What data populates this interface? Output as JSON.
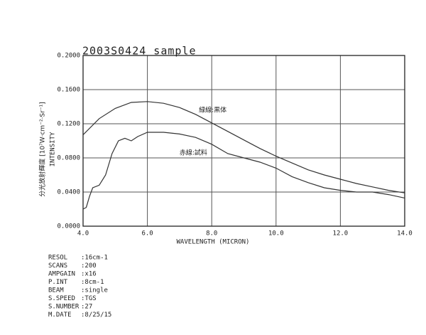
{
  "chart_data": {
    "type": "line",
    "title": "2003S0424 sample",
    "x_label": "WAVELENGTH (MICRON)",
    "y_label": "INTENSITY",
    "y_label_jp": "分光放射輝度 [10⁷W·cm⁻²·Sr⁻¹]",
    "xlim": [
      4,
      14
    ],
    "ylim": [
      0,
      0.2
    ],
    "xticks": [
      {
        "value": 4,
        "label": "4.0"
      },
      {
        "value": 6,
        "label": "6.0"
      },
      {
        "value": 8,
        "label": "8.0"
      },
      {
        "value": 10,
        "label": "10.0"
      },
      {
        "value": 12,
        "label": "12.0"
      },
      {
        "value": 14,
        "label": "14.0"
      }
    ],
    "yticks": [
      {
        "value": 0,
        "label": "0.0000"
      },
      {
        "value": 0.04,
        "label": "0.0400"
      },
      {
        "value": 0.08,
        "label": "0.0800"
      },
      {
        "value": 0.12,
        "label": "0.1200"
      },
      {
        "value": 0.16,
        "label": "0.1600"
      },
      {
        "value": 0.2,
        "label": "0.2000"
      }
    ],
    "grid": true,
    "series": [
      {
        "color": "#333333",
        "x": [
          4.0,
          4.5,
          5.0,
          5.5,
          6.0,
          6.5,
          7.0,
          7.5,
          8.0,
          8.5,
          9.0,
          9.5,
          10.0,
          10.5,
          11.0,
          11.5,
          12.0,
          12.5,
          13.0,
          13.5,
          14.0
        ],
        "values": [
          0.107,
          0.126,
          0.138,
          0.145,
          0.146,
          0.144,
          0.139,
          0.131,
          0.121,
          0.111,
          0.101,
          0.091,
          0.082,
          0.074,
          0.066,
          0.06,
          0.055,
          0.05,
          0.046,
          0.042,
          0.039
        ]
      },
      {
        "color": "#333333",
        "x": [
          4.0,
          4.1,
          4.2,
          4.3,
          4.5,
          4.7,
          4.9,
          5.1,
          5.3,
          5.5,
          5.7,
          6.0,
          6.5,
          7.0,
          7.5,
          8.0,
          8.5,
          9.0,
          9.5,
          10.0,
          10.5,
          11.0,
          11.5,
          12.0,
          12.5,
          13.0,
          13.5,
          14.0
        ],
        "values": [
          0.02,
          0.022,
          0.035,
          0.045,
          0.048,
          0.06,
          0.085,
          0.1,
          0.103,
          0.1,
          0.105,
          0.11,
          0.11,
          0.108,
          0.104,
          0.096,
          0.085,
          0.08,
          0.075,
          0.068,
          0.058,
          0.051,
          0.045,
          0.042,
          0.04,
          0.04,
          0.037,
          0.033
        ]
      }
    ],
    "annotations": [
      {
        "text": "緑線:黒体",
        "x": 7.6,
        "y": 0.136
      },
      {
        "text": "赤線:試料",
        "x": 7.0,
        "y": 0.086
      }
    ],
    "info": [
      {
        "key": "RESOL",
        "value": ":16cm-1"
      },
      {
        "key": "SCANS",
        "value": ":200"
      },
      {
        "key": "AMPGAIN",
        "value": ":x16"
      },
      {
        "key": "P.INT",
        "value": ":8cm-1"
      },
      {
        "key": "BEAM",
        "value": ":single"
      },
      {
        "key": "S.SPEED",
        "value": ":TGS"
      },
      {
        "key": "S.NUMBER",
        "value": ":27"
      },
      {
        "key": "M.DATE",
        "value": ":8/25/15"
      }
    ]
  }
}
